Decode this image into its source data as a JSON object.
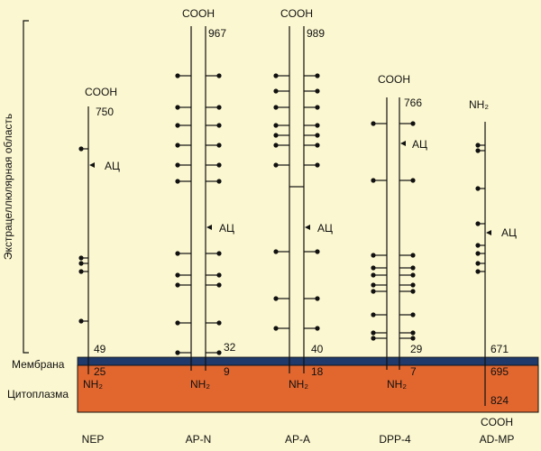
{
  "region_labels": {
    "extracellular": "Экстрацеллюлярная область",
    "membrane": "Мембрана",
    "cytoplasm": "Цитоплазма"
  },
  "colors": {
    "background": "#fbf7d0",
    "membrane": "#1f3a6b",
    "cytoplasm": "#e2672f",
    "line": "#111111"
  },
  "active_site_label": "АЦ",
  "proteins": [
    {
      "name": "NEP",
      "top_terminal": "COOH",
      "bottom_terminal": "NH₂",
      "top_residue": "750",
      "membrane_top_residue": "49",
      "membrane_bottom_residue": "25"
    },
    {
      "name": "AP-N",
      "top_terminal": "COOH",
      "bottom_terminal": "NH₂",
      "top_residue": "967",
      "membrane_top_residue": "32",
      "membrane_bottom_residue": "9"
    },
    {
      "name": "AP-A",
      "top_terminal": "COOH",
      "bottom_terminal": "NH₂",
      "top_residue": "989",
      "membrane_top_residue": "40",
      "membrane_bottom_residue": "18"
    },
    {
      "name": "DPP-4",
      "top_terminal": "COOH",
      "bottom_terminal": "NH₂",
      "top_residue": "766",
      "membrane_top_residue": "29",
      "membrane_bottom_residue": "7"
    },
    {
      "name": "AD-MP",
      "top_terminal": "NH₂",
      "bottom_terminal": "COOH",
      "membrane_top_residue": "671",
      "membrane_bottom_residue": "695",
      "end_residue": "824"
    }
  ]
}
